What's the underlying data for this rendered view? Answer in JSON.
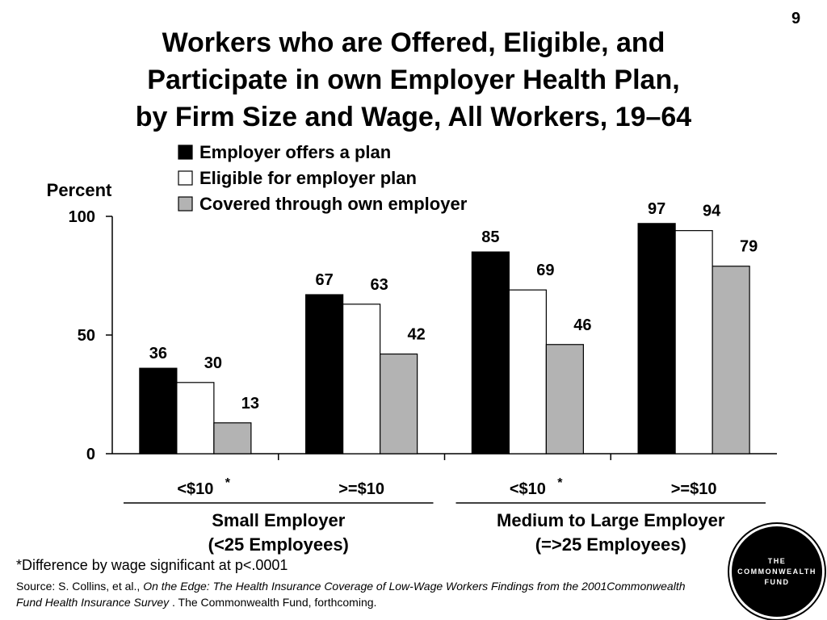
{
  "page_number": "9",
  "title_lines": [
    "Workers who are Offered, Eligible, and",
    "Participate in own Employer Health Plan,",
    "by Firm Size and Wage, All Workers, 19–64"
  ],
  "footnote": "*Difference by wage significant at p<.0001",
  "source": {
    "prefix": "Source: S. Collins, et al., ",
    "italic": "On the Edge: The Health Insurance Coverage of Low-Wage Workers Findings from the 2001Commonwealth Fund Health Insurance Survey",
    "suffix": " . The Commonwealth Fund, forthcoming."
  },
  "logo": {
    "lines": [
      "THE",
      "COMMONWEALTH",
      "FUND"
    ]
  },
  "colors": {
    "offers": "#000000",
    "eligible": "#ffffff",
    "covered": "#b3b3b3"
  },
  "chart_data": {
    "type": "bar",
    "ylabel": "Percent",
    "ylim": [
      0,
      100
    ],
    "yticks": [
      0,
      50,
      100
    ],
    "categories": [
      "<$10",
      ">=$10",
      "<$10",
      ">=$10"
    ],
    "category_asterisk": [
      true,
      false,
      true,
      false
    ],
    "groups": [
      {
        "lines": [
          "Small Employer",
          "(<25 Employees)"
        ],
        "categories": [
          0,
          1
        ]
      },
      {
        "lines": [
          "Medium to Large Employer",
          "(=>25 Employees)"
        ],
        "categories": [
          2,
          3
        ]
      }
    ],
    "series": [
      {
        "name": "Employer offers a plan",
        "values": [
          36,
          67,
          85,
          97
        ]
      },
      {
        "name": "Eligible for employer plan",
        "values": [
          30,
          63,
          69,
          94
        ]
      },
      {
        "name": "Covered through own employer",
        "values": [
          13,
          42,
          46,
          79
        ]
      }
    ],
    "legend_position": "top"
  }
}
